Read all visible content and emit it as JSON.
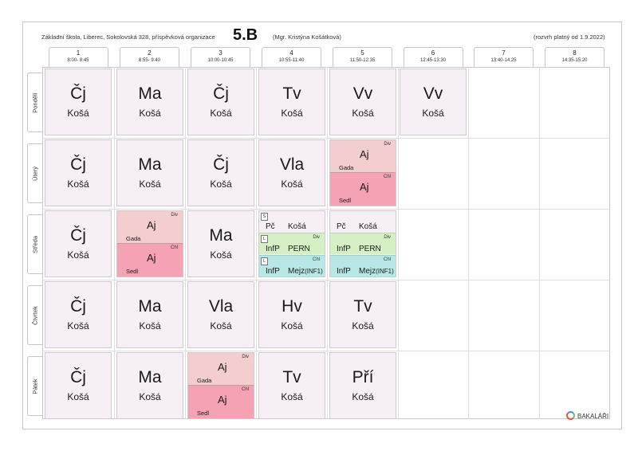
{
  "header": {
    "school": "Základní škola, Liberec, Sokolovská 328, příspěvková organizace",
    "class_name": "5.B",
    "teacher": "(Mgr. Kristýna Košátková)",
    "validity": "(rozvrh platný od 1.9.2022)"
  },
  "periods": [
    {
      "num": "1",
      "time": "8:00- 8:45"
    },
    {
      "num": "2",
      "time": "8:55- 9:40"
    },
    {
      "num": "3",
      "time": "10:00-10:45"
    },
    {
      "num": "4",
      "time": "10:55-11:40"
    },
    {
      "num": "5",
      "time": "11:50-12:35"
    },
    {
      "num": "6",
      "time": "12:45-13:30"
    },
    {
      "num": "7",
      "time": "13:40-14:25"
    },
    {
      "num": "8",
      "time": "14:35-15:20"
    }
  ],
  "days": [
    "Pondělí",
    "Úterý",
    "Středa",
    "Čtvrtek",
    "Pátek"
  ],
  "lessons": {
    "mon": [
      {
        "subject": "Čj",
        "teacher": "Košá"
      },
      {
        "subject": "Ma",
        "teacher": "Košá"
      },
      {
        "subject": "Čj",
        "teacher": "Košá"
      },
      {
        "subject": "Tv",
        "teacher": "Košá"
      },
      {
        "subject": "Vv",
        "teacher": "Košá"
      },
      {
        "subject": "Vv",
        "teacher": "Košá"
      }
    ],
    "tue": [
      {
        "subject": "Čj",
        "teacher": "Košá"
      },
      {
        "subject": "Ma",
        "teacher": "Košá"
      },
      {
        "subject": "Čj",
        "teacher": "Košá"
      },
      {
        "subject": "Vla",
        "teacher": "Košá"
      },
      {
        "split": true,
        "top": {
          "group": "Div",
          "subject": "Aj",
          "teacher": "Gada"
        },
        "bottom": {
          "group": "Chl",
          "subject": "Aj",
          "teacher": "Sedl"
        }
      }
    ],
    "wed": [
      {
        "subject": "Čj",
        "teacher": "Košá"
      },
      {
        "split": true,
        "top": {
          "group": "Div",
          "subject": "Aj",
          "teacher": "Gada"
        },
        "bottom": {
          "group": "Chl",
          "subject": "Aj",
          "teacher": "Sedl"
        }
      },
      {
        "subject": "Ma",
        "teacher": "Košá"
      },
      {
        "multi": true,
        "rows": [
          {
            "tag": "S",
            "group": "",
            "subject": "Pč",
            "teacher": "Košá",
            "room": ""
          },
          {
            "tag": "L",
            "group": "Div",
            "subject": "InfP",
            "teacher": "PERN",
            "room": ""
          },
          {
            "tag": "L",
            "group": "Chl",
            "subject": "InfP",
            "teacher": "Mejz",
            "room": "(INF1)"
          }
        ]
      },
      {
        "multi": true,
        "rows": [
          {
            "tag": "",
            "group": "",
            "subject": "Pč",
            "teacher": "Košá",
            "room": ""
          },
          {
            "tag": "",
            "group": "Div",
            "subject": "InfP",
            "teacher": "PERN",
            "room": ""
          },
          {
            "tag": "",
            "group": "Chl",
            "subject": "InfP",
            "teacher": "Mejz",
            "room": "(INF1)"
          }
        ]
      }
    ],
    "thu": [
      {
        "subject": "Čj",
        "teacher": "Košá"
      },
      {
        "subject": "Ma",
        "teacher": "Košá"
      },
      {
        "subject": "Vla",
        "teacher": "Košá"
      },
      {
        "subject": "Hv",
        "teacher": "Košá"
      },
      {
        "subject": "Tv",
        "teacher": "Košá"
      }
    ],
    "fri": [
      {
        "subject": "Čj",
        "teacher": "Košá"
      },
      {
        "subject": "Ma",
        "teacher": "Košá"
      },
      {
        "split": true,
        "top": {
          "group": "Div",
          "subject": "Aj",
          "teacher": "Gada"
        },
        "bottom": {
          "group": "Chl",
          "subject": "Aj",
          "teacher": "Sedl"
        }
      },
      {
        "subject": "Tv",
        "teacher": "Košá"
      },
      {
        "subject": "Pří",
        "teacher": "Košá"
      }
    ]
  },
  "colors": {
    "lesson_bg": "#f6eff6",
    "girls_group": "#f4cdcf",
    "boys_group": "#f4a2b4",
    "green_group": "#d5f0c5",
    "cyan_group": "#b8e8e6"
  },
  "logo": {
    "text": "BAKALÁŘI",
    "icon": "bakalari-logo-icon"
  }
}
